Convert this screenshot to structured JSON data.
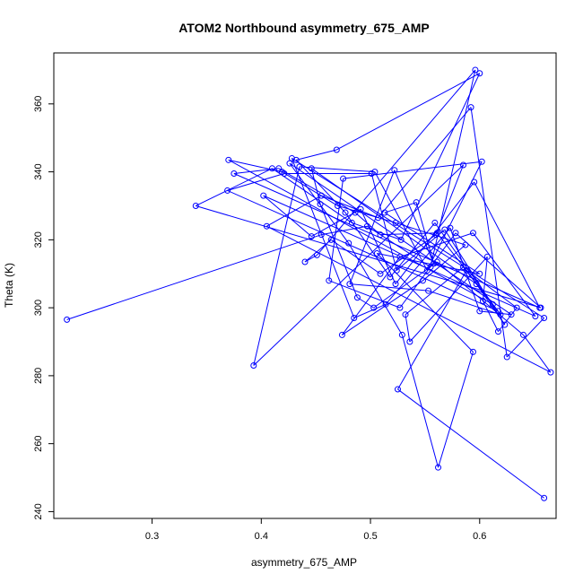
{
  "chart_data": {
    "type": "line",
    "title": "ATOM2 Northbound asymmetry_675_AMP",
    "xlabel": "asymmetry_675_AMP",
    "ylabel": "Theta (K)",
    "xlim": [
      0.21,
      0.67
    ],
    "ylim": [
      238,
      375
    ],
    "xticks": [
      0.3,
      0.4,
      0.5,
      0.6
    ],
    "yticks": [
      240,
      260,
      280,
      300,
      320,
      340,
      360
    ],
    "grid": false,
    "legend": "none",
    "color": "#0000ff",
    "markers": "open-circle",
    "series": [
      {
        "x": [
          0.222,
          0.455,
          0.497,
          0.555,
          0.596,
          0.451,
          0.44,
          0.464,
          0.509,
          0.56,
          0.585,
          0.393,
          0.435,
          0.504,
          0.552,
          0.602,
          0.475,
          0.462,
          0.527,
          0.578,
          0.656,
          0.34,
          0.41,
          0.483,
          0.528,
          0.6,
          0.469,
          0.432,
          0.477,
          0.518,
          0.559,
          0.612,
          0.37,
          0.419,
          0.47,
          0.523,
          0.587,
          0.548,
          0.474,
          0.527,
          0.594,
          0.651,
          0.402,
          0.446,
          0.491,
          0.523,
          0.595,
          0.655,
          0.375,
          0.416,
          0.486,
          0.509,
          0.561,
          0.617,
          0.369,
          0.421,
          0.501,
          0.524,
          0.568,
          0.623,
          0.597,
          0.446,
          0.454,
          0.488,
          0.503,
          0.561,
          0.64,
          0.665,
          0.405,
          0.455,
          0.507,
          0.592,
          0.625,
          0.659,
          0.428,
          0.485,
          0.514,
          0.573,
          0.6,
          0.629,
          0.426,
          0.48,
          0.529,
          0.562,
          0.594,
          0.506,
          0.6,
          0.513,
          0.542,
          0.558,
          0.522,
          0.481,
          0.553,
          0.619,
          0.585,
          0.532,
          0.536,
          0.607,
          0.603,
          0.617,
          0.634,
          0.588,
          0.525,
          0.659
        ],
        "y": [
          296.5,
          321.5,
          324.0,
          312.0,
          370.0,
          315.5,
          313.5,
          320.0,
          310.0,
          321.5,
          342.0,
          283.0,
          341.5,
          340.0,
          311.0,
          343.0,
          338.0,
          308.0,
          300.0,
          322.0,
          300.0,
          330.0,
          341.0,
          325.0,
          320.0,
          369.0,
          346.5,
          343.5,
          328.0,
          309.0,
          325.0,
          301.0,
          343.5,
          340.0,
          330.0,
          325.0,
          318.5,
          308.0,
          292.0,
          315.0,
          322.0,
          297.5,
          333.0,
          321.0,
          329.0,
          307.0,
          337.0,
          300.0,
          339.5,
          341.0,
          328.0,
          321.5,
          322.0,
          299.0,
          334.5,
          339.5,
          339.5,
          311.0,
          323.0,
          295.0,
          307.0,
          341.0,
          330.5,
          303.0,
          300.0,
          313.5,
          292.0,
          281.0,
          324.0,
          333.0,
          326.5,
          359.0,
          285.5,
          297.0,
          344.0,
          297.0,
          301.0,
          323.5,
          299.0,
          298.0,
          342.5,
          319.0,
          292.0,
          253.0,
          287.0,
          316.0,
          310.0,
          328.0,
          331.0,
          313.0,
          340.5,
          307.0,
          305.0,
          298.0,
          312.0,
          298.0,
          290.0,
          315.0,
          302.0,
          293.0,
          300.0,
          311.0,
          276.0,
          244.0
        ]
      }
    ]
  }
}
